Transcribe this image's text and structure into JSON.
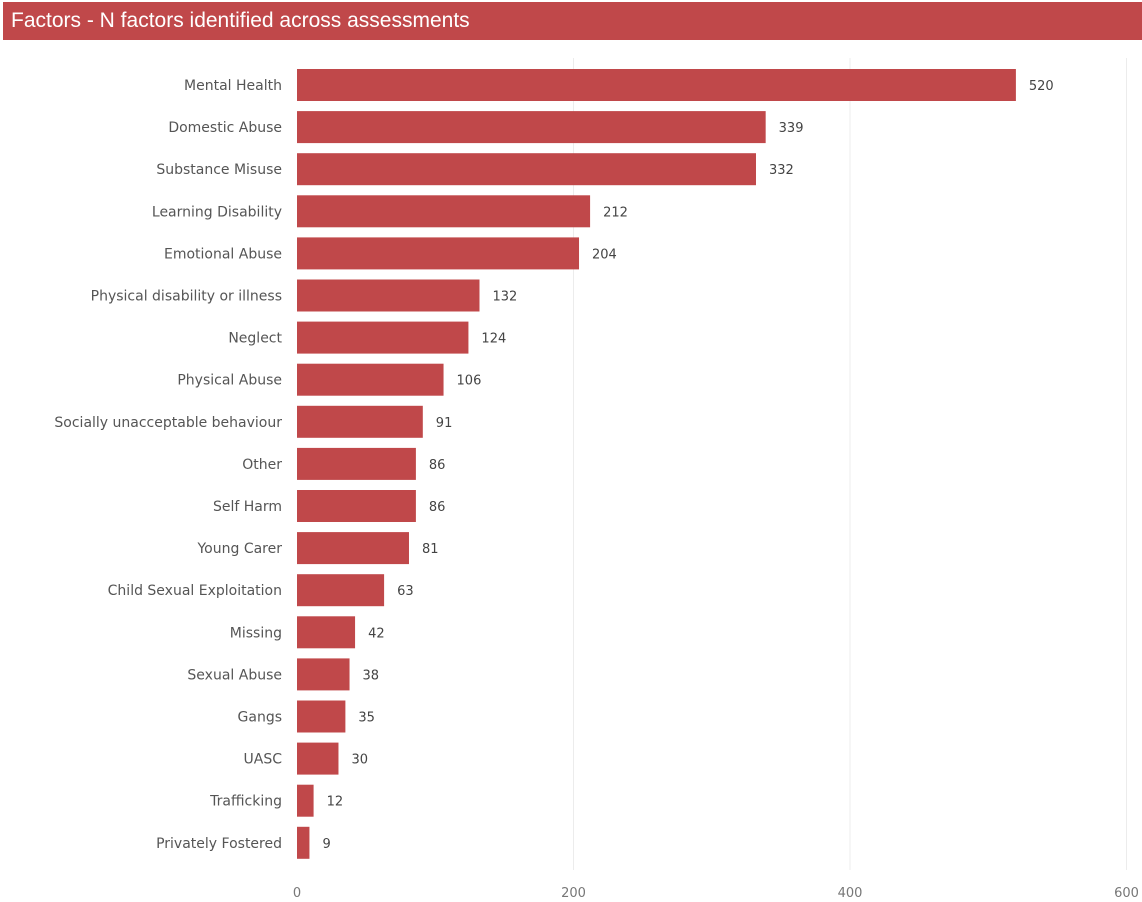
{
  "header": {
    "title": "Factors - N factors identified across assessments",
    "color": "#c0484a"
  },
  "chart_data": {
    "type": "bar",
    "orientation": "horizontal",
    "title": "Factors - N factors identified across assessments",
    "bar_color": "#c0484a",
    "categories": [
      "Mental Health",
      "Domestic Abuse",
      "Substance Misuse",
      "Learning Disability",
      "Emotional Abuse",
      "Physical disability or illness",
      "Neglect",
      "Physical Abuse",
      "Socially unacceptable behaviour",
      "Other",
      "Self Harm",
      "Young Carer",
      "Child Sexual Exploitation",
      "Missing",
      "Sexual Abuse",
      "Gangs",
      "UASC",
      "Trafficking",
      "Privately Fostered"
    ],
    "values": [
      520,
      339,
      332,
      212,
      204,
      132,
      124,
      106,
      91,
      86,
      86,
      81,
      63,
      42,
      38,
      35,
      30,
      12,
      9
    ],
    "xlim": [
      0,
      600
    ],
    "xticks": [
      0,
      200,
      400,
      600
    ],
    "grid": true,
    "data_labels": true
  }
}
